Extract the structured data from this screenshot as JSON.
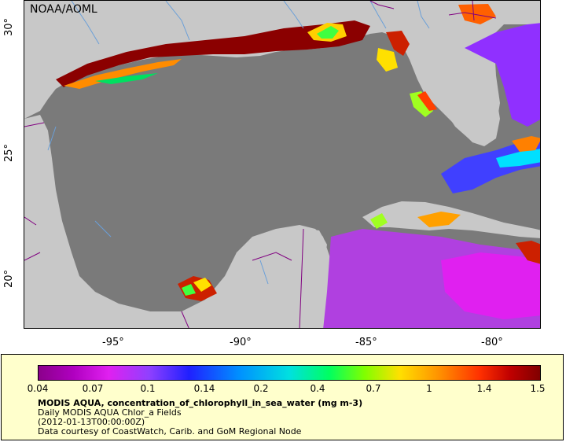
{
  "credit": "NOAA/AOML",
  "latitude_labels": [
    "30°",
    "25°",
    "20°"
  ],
  "longitude_labels": [
    "-95°",
    "-90°",
    "-85°",
    "-80°"
  ],
  "colorbar": {
    "ticks": [
      "0.04",
      "0.07",
      "0.1",
      "0.14",
      "0.2",
      "0.4",
      "0.7",
      "1",
      "1.4",
      "1.5"
    ]
  },
  "legend": {
    "title": "MODIS AQUA, concentration_of_chlorophyll_in_sea_water (mg m-3)",
    "line1": "Daily MODIS AQUA Chlor_a Fields",
    "line2": "(2012-01-13T00:00:00Z)",
    "line3": "Data courtesy of CoastWatch, Carib. and GoM Regional Node"
  },
  "colors": {
    "land": "#c8c8c8",
    "ocean_no_data": "#7a7a7a",
    "rivers": "#6a9fd8",
    "borders": "#800080",
    "legend_background": "#ffffcc"
  }
}
